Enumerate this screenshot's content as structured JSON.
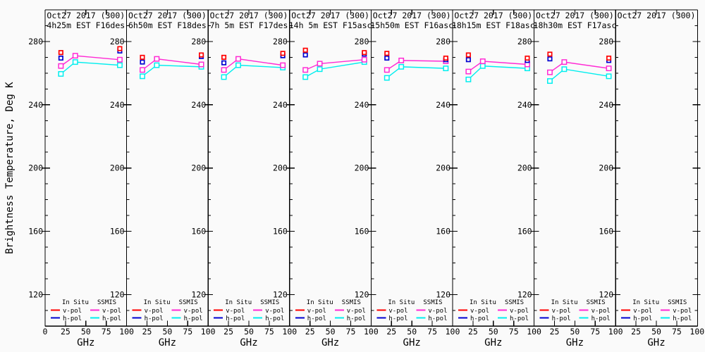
{
  "figure": {
    "background": "#fafafa",
    "foreground": "#000000"
  },
  "chart_data": {
    "type": "line",
    "title": "Oct27 2017 (300)",
    "ylabel": "Brightness Temperature, Deg K",
    "xlabel": "GHz",
    "xlim": [
      0,
      100
    ],
    "ylim": [
      100,
      300
    ],
    "xticks": [
      0,
      25,
      50,
      75,
      100
    ],
    "yticks_labeled": [
      120,
      160,
      200,
      240,
      280
    ],
    "ytick_minor_step": 10,
    "grid": false,
    "legend": {
      "insitu_header": "In Situ",
      "ssmis_header": "SSMIS",
      "vpol_label": "v-pol",
      "hpol_label": "h-pol"
    },
    "colors": {
      "insitu_v": "#ff0000",
      "insitu_h": "#0000d0",
      "ssmis_v": "#ff2ad4",
      "ssmis_h": "#00eeee"
    },
    "ssmis_freqs_ghz": [
      19.35,
      37.0,
      91.655
    ],
    "insitu_freqs_ghz": [
      19.35,
      91.655
    ],
    "panels": [
      {
        "title": "Oct27 2017 (300)",
        "subtitle": "4h25m EST F16des",
        "insitu_v": [
          273.0,
          275.5
        ],
        "insitu_h": [
          269.5,
          274.0
        ],
        "ssmis_v": [
          264.5,
          271.0,
          268.5
        ],
        "ssmis_h": [
          259.5,
          267.0,
          265.0
        ]
      },
      {
        "title": "Oct27 2017 (300)",
        "subtitle": "6h50m EST F18des",
        "insitu_v": [
          270.0,
          271.5
        ],
        "insitu_h": [
          267.0,
          270.5
        ],
        "ssmis_v": [
          262.0,
          269.0,
          265.5
        ],
        "ssmis_h": [
          258.0,
          265.0,
          264.0
        ]
      },
      {
        "title": "Oct27 2017 (300)",
        "subtitle": "7h 5m EST F17des",
        "insitu_v": [
          270.0,
          272.5
        ],
        "insitu_h": [
          266.5,
          271.0
        ],
        "ssmis_v": [
          262.0,
          269.0,
          265.0
        ],
        "ssmis_h": [
          257.5,
          265.0,
          263.5
        ]
      },
      {
        "title": "Oct27 2017 (300)",
        "subtitle": "14h 5m EST F15asc",
        "insitu_v": [
          274.5,
          273.0
        ],
        "insitu_h": [
          271.5,
          272.0
        ],
        "ssmis_v": [
          262.0,
          266.0,
          268.5
        ],
        "ssmis_h": [
          257.5,
          262.5,
          267.0
        ]
      },
      {
        "title": "Oct27 2017 (300)",
        "subtitle": "15h50m EST F16asc",
        "insitu_v": [
          272.5,
          269.5
        ],
        "insitu_h": [
          269.5,
          268.5
        ],
        "ssmis_v": [
          262.0,
          268.0,
          267.5
        ],
        "ssmis_h": [
          257.0,
          264.0,
          263.0
        ]
      },
      {
        "title": "Oct27 2017 (300)",
        "subtitle": "18h15m EST F18asc",
        "insitu_v": [
          271.5,
          269.5
        ],
        "insitu_h": [
          268.5,
          268.0
        ],
        "ssmis_v": [
          261.0,
          267.5,
          265.5
        ],
        "ssmis_h": [
          256.0,
          264.5,
          263.0
        ]
      },
      {
        "title": "Oct27 2017 (300)",
        "subtitle": "18h30m EST F17asc",
        "insitu_v": [
          272.0,
          269.5
        ],
        "insitu_h": [
          269.0,
          268.0
        ],
        "ssmis_v": [
          260.5,
          267.0,
          263.0
        ],
        "ssmis_h": [
          255.0,
          262.5,
          258.0
        ]
      },
      {
        "title": "Oct27 2017 (300)",
        "subtitle": "",
        "insitu_v": [],
        "insitu_h": [],
        "ssmis_v": [],
        "ssmis_h": []
      }
    ]
  }
}
